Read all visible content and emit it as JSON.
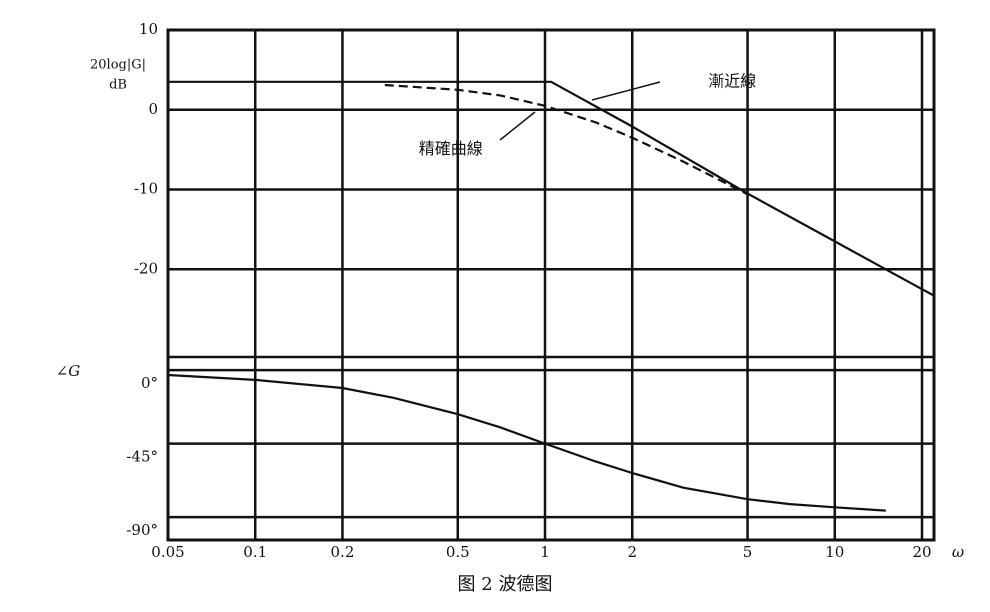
{
  "chart_data": [
    {
      "type": "line",
      "y_label": [
        "20log|G|",
        "dB"
      ],
      "xscale": "log",
      "xlim": [
        0.05,
        22
      ],
      "xticks": [
        0.05,
        0.1,
        0.2,
        0.5,
        1,
        2,
        5,
        10,
        20
      ],
      "ylim": [
        -31,
        10
      ],
      "yticks": [
        10,
        0,
        -10,
        -20
      ],
      "grid": true,
      "annotations": [
        {
          "text": "漸近線",
          "x": 3,
          "y": 3.5
        },
        {
          "text": "精確曲線",
          "x": 0.5,
          "y": -5
        }
      ],
      "series": [
        {
          "color": "#111111",
          "dashed": false,
          "x": [
            0.05,
            1.05,
            2,
            5,
            10,
            20,
            22
          ],
          "values": [
            3.5,
            3.5,
            -2.1,
            -10.5,
            -16.5,
            -22.5,
            -23.3
          ]
        },
        {
          "color": "#111111",
          "dashed": true,
          "x": [
            0.28,
            0.5,
            0.7,
            1,
            1.5,
            2,
            3,
            5
          ],
          "values": [
            3.1,
            2.5,
            1.8,
            0.5,
            -1.6,
            -3.5,
            -6.5,
            -10.6
          ]
        }
      ]
    },
    {
      "type": "line",
      "y_label": "∠G",
      "x_label": "ω",
      "xscale": "log",
      "xlim": [
        0.05,
        22
      ],
      "xticks": [
        0.05,
        0.1,
        0.2,
        0.5,
        1,
        2,
        5,
        10,
        20
      ],
      "ylim": [
        -104,
        8
      ],
      "yticks": [
        {
          "value": 0,
          "label": "0°"
        },
        {
          "value": -45,
          "label": "-45°"
        },
        {
          "value": -90,
          "label": "-90°"
        }
      ],
      "grid": true,
      "series": [
        {
          "color": "#111111",
          "dashed": false,
          "x": [
            0.05,
            0.1,
            0.2,
            0.3,
            0.5,
            0.7,
            1,
            1.5,
            2,
            3,
            5,
            7,
            10,
            15
          ],
          "values": [
            -3,
            -6,
            -11,
            -17,
            -27,
            -35,
            -45,
            -56,
            -63,
            -72,
            -79,
            -82,
            -84,
            -86
          ]
        }
      ]
    }
  ],
  "caption": "图 2 波德图"
}
